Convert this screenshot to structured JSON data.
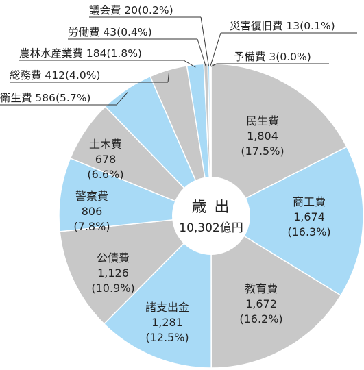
{
  "chart_data": {
    "type": "pie",
    "title": "",
    "center_label": {
      "title": "歳 出",
      "total": "10,302億円"
    },
    "slices": [
      {
        "name": "民生費",
        "value": 1804,
        "value_label": "1,804",
        "pct": "(17.5%)",
        "color": "#c8c8c8",
        "label_position": "inside"
      },
      {
        "name": "商工費",
        "value": 1674,
        "value_label": "1,674",
        "pct": "(16.3%)",
        "color": "#a8daf6",
        "label_position": "inside"
      },
      {
        "name": "教育費",
        "value": 1672,
        "value_label": "1,672",
        "pct": "(16.2%)",
        "color": "#c8c8c8",
        "label_position": "inside"
      },
      {
        "name": "諸支出金",
        "value": 1281,
        "value_label": "1,281",
        "pct": "(12.5%)",
        "color": "#a8daf6",
        "label_position": "inside"
      },
      {
        "name": "公債費",
        "value": 1126,
        "value_label": "1,126",
        "pct": "(10.9%)",
        "color": "#c8c8c8",
        "label_position": "inside"
      },
      {
        "name": "警察費",
        "value": 806,
        "value_label": "806",
        "pct": "(7.8%)",
        "color": "#a8daf6",
        "label_position": "inside"
      },
      {
        "name": "土木費",
        "value": 678,
        "value_label": "678",
        "pct": "(6.6%)",
        "color": "#c8c8c8",
        "label_position": "inside"
      },
      {
        "name": "衛生費",
        "value": 586,
        "value_label": "586",
        "pct": "(5.7%)",
        "color": "#a8daf6",
        "label_position": "outside"
      },
      {
        "name": "総務費",
        "value": 412,
        "value_label": "412",
        "pct": "(4.0%)",
        "color": "#c8c8c8",
        "label_position": "outside"
      },
      {
        "name": "農林水産業費",
        "value": 184,
        "value_label": "184",
        "pct": "(1.8%)",
        "color": "#a8daf6",
        "label_position": "outside"
      },
      {
        "name": "労働費",
        "value": 43,
        "value_label": "43",
        "pct": "(0.4%)",
        "color": "#c8c8c8",
        "label_position": "outside"
      },
      {
        "name": "議会費",
        "value": 20,
        "value_label": "20",
        "pct": "(0.2%)",
        "color": "#a8daf6",
        "label_position": "outside"
      },
      {
        "name": "災害復旧費",
        "value": 13,
        "value_label": "13",
        "pct": "(0.1%)",
        "color": "#c8c8c8",
        "label_position": "outside"
      },
      {
        "name": "予備費",
        "value": 3,
        "value_label": "3",
        "pct": "(0.0%)",
        "color": "#a8daf6",
        "label_position": "outside"
      }
    ],
    "legend": "none"
  }
}
